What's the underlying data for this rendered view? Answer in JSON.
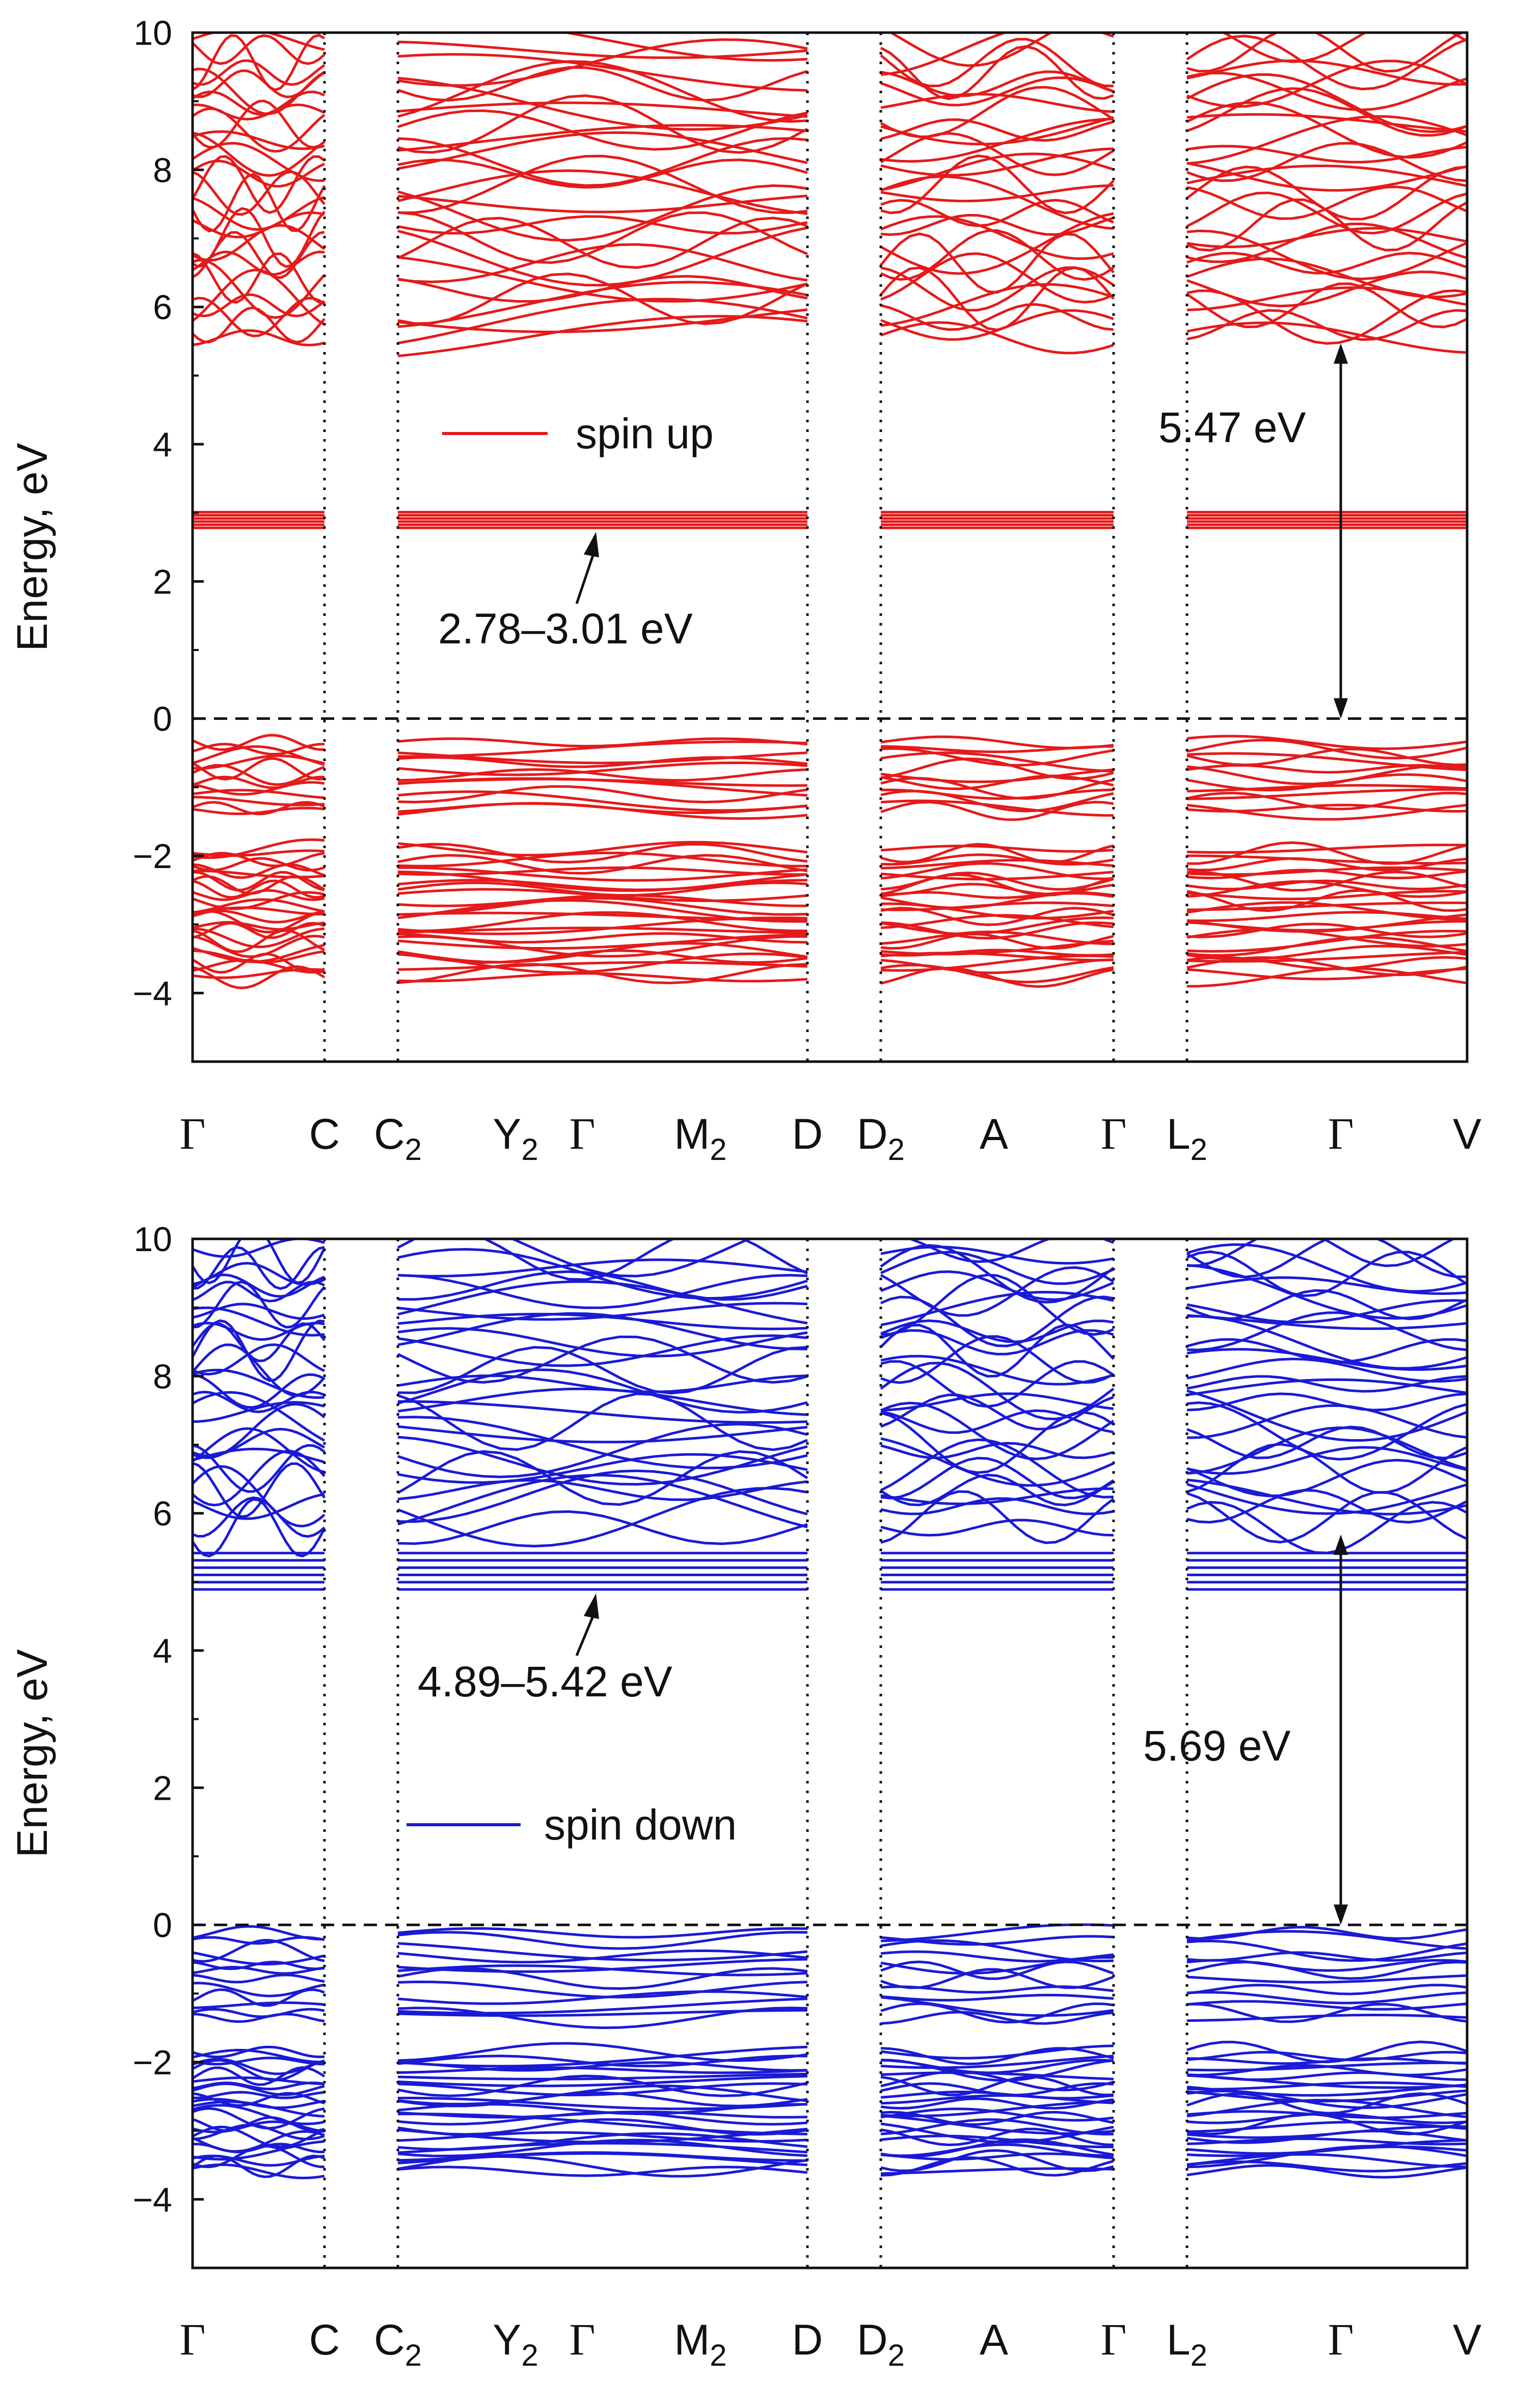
{
  "chart_data": [
    {
      "type": "line",
      "panel": "top",
      "ylabel": "Energy, eV",
      "ylim": [
        -5,
        10
      ],
      "yticks": [
        -4,
        -2,
        0,
        2,
        4,
        6,
        8,
        10
      ],
      "ytick_labels": [
        "−4",
        "−2",
        "0",
        "2",
        "4",
        "6",
        "8",
        "10"
      ],
      "kpoint_labels": [
        {
          "main": "Γ",
          "sub": ""
        },
        {
          "main": "C",
          "sub": ""
        },
        {
          "main": "C",
          "sub": "2"
        },
        {
          "main": "Y",
          "sub": "2"
        },
        {
          "main": "Γ",
          "sub": ""
        },
        {
          "main": "M",
          "sub": "2"
        },
        {
          "main": "D",
          "sub": ""
        },
        {
          "main": "D",
          "sub": "2"
        },
        {
          "main": "A",
          "sub": ""
        },
        {
          "main": "Γ",
          "sub": ""
        },
        {
          "main": "L",
          "sub": "2"
        },
        {
          "main": "Γ",
          "sub": ""
        },
        {
          "main": "V",
          "sub": ""
        }
      ],
      "color": "#e51a1a",
      "legend": "spin up",
      "fermi_level": 0,
      "flat_band": {
        "label": "2.78–3.01 eV",
        "range": [
          2.78,
          3.01
        ]
      },
      "gap": {
        "label": "5.47 eV",
        "from": 0,
        "to": 5.47
      },
      "valence_lower": [
        -3.8,
        -1.85
      ],
      "valence_upper": [
        -1.4,
        -0.3
      ],
      "conduction": [
        5.5,
        10
      ]
    },
    {
      "type": "line",
      "panel": "bottom",
      "ylabel": "Energy, eV",
      "ylim": [
        -5,
        10
      ],
      "yticks": [
        -4,
        -2,
        0,
        2,
        4,
        6,
        8,
        10
      ],
      "ytick_labels": [
        "−4",
        "−2",
        "0",
        "2",
        "4",
        "6",
        "8",
        "10"
      ],
      "kpoint_labels": [
        {
          "main": "Γ",
          "sub": ""
        },
        {
          "main": "C",
          "sub": ""
        },
        {
          "main": "C",
          "sub": "2"
        },
        {
          "main": "Y",
          "sub": "2"
        },
        {
          "main": "Γ",
          "sub": ""
        },
        {
          "main": "M",
          "sub": "2"
        },
        {
          "main": "D",
          "sub": ""
        },
        {
          "main": "D",
          "sub": "2"
        },
        {
          "main": "A",
          "sub": ""
        },
        {
          "main": "Γ",
          "sub": ""
        },
        {
          "main": "L",
          "sub": "2"
        },
        {
          "main": "Γ",
          "sub": ""
        },
        {
          "main": "V",
          "sub": ""
        }
      ],
      "color": "#1a1ad6",
      "legend": "spin down",
      "fermi_level": 0,
      "flat_band": {
        "label": "4.89–5.42 eV",
        "range": [
          4.89,
          5.42
        ]
      },
      "gap": {
        "label": "5.69 eV",
        "from": 0,
        "to": 5.69
      },
      "valence_lower": [
        -3.6,
        -1.8
      ],
      "valence_upper": [
        -1.4,
        -0.05
      ],
      "conduction": [
        5.75,
        10
      ]
    }
  ]
}
